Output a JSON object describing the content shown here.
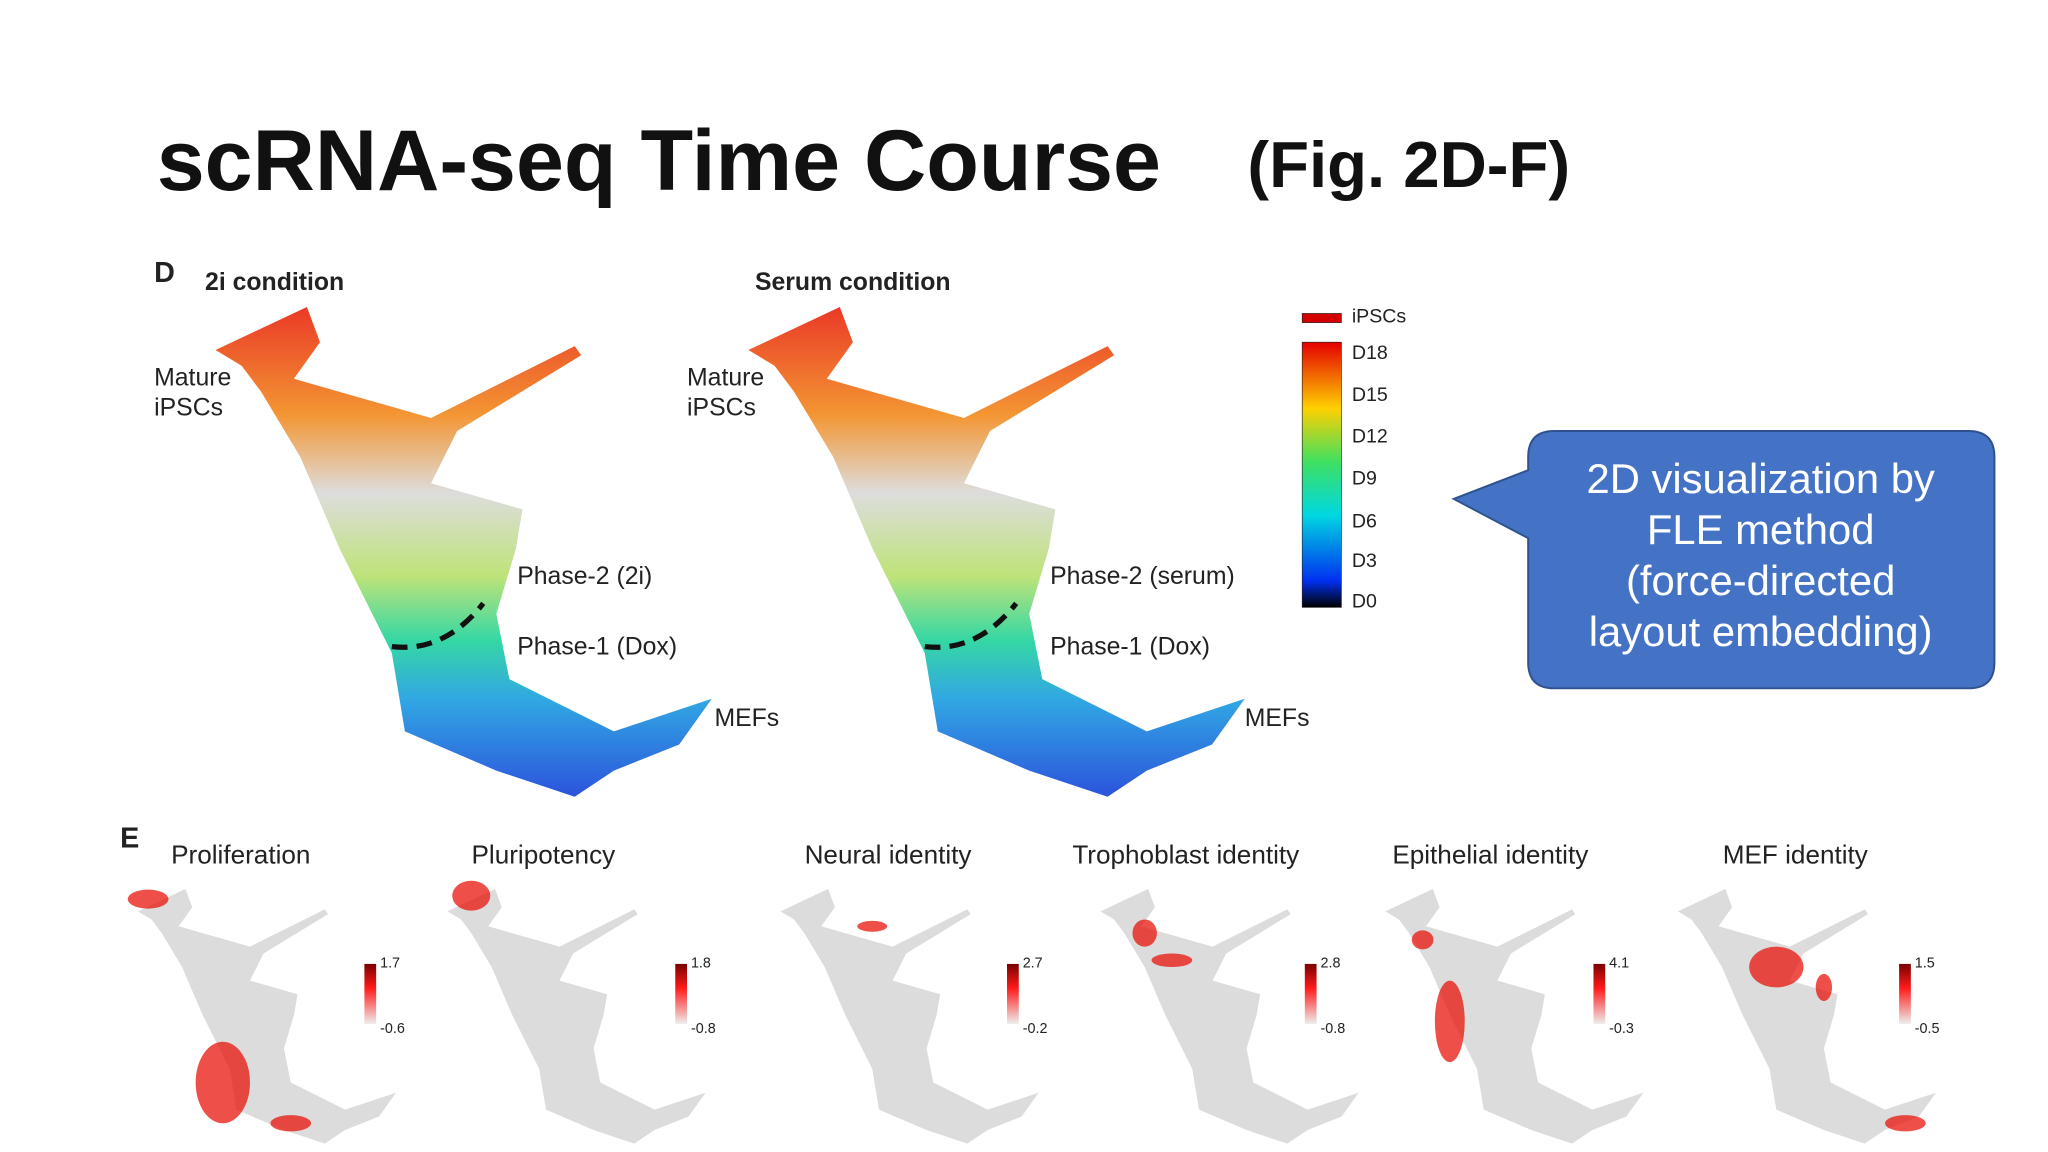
{
  "title": {
    "main": "scRNA-seq Time Course",
    "sub": "(Fig. 2D-F)"
  },
  "panel_d": {
    "label": "D",
    "left": {
      "title": "2i condition",
      "mature": [
        "Mature",
        "iPSCs"
      ],
      "phase2": "Phase-2 (2i)",
      "phase1": "Phase-1 (Dox)",
      "mefs": "MEFs"
    },
    "right": {
      "title": "Serum condition",
      "mature": [
        "Mature",
        "iPSCs"
      ],
      "phase2": "Phase-2 (serum)",
      "phase1": "Phase-1 (Dox)",
      "mefs": "MEFs"
    },
    "legend": {
      "labels": [
        "iPSCs",
        "D18",
        "D15",
        "D12",
        "D9",
        "D6",
        "D3",
        "D0"
      ]
    }
  },
  "callout": {
    "lines": [
      "2D visualization by",
      "FLE method",
      "(force-directed",
      "layout embedding)"
    ]
  },
  "panel_e": {
    "label": "E",
    "plots": [
      {
        "title": "Proliferation",
        "max": "1.7",
        "min": "-0.6"
      },
      {
        "title": "Pluripotency",
        "max": "1.8",
        "min": "-0.8"
      },
      {
        "title": "Neural identity",
        "max": "2.7",
        "min": "-0.2"
      },
      {
        "title": "Trophoblast identity",
        "max": "2.8",
        "min": "-0.8"
      },
      {
        "title": "Epithelial identity",
        "max": "4.1",
        "min": "-0.3"
      },
      {
        "title": "MEF identity",
        "max": "1.5",
        "min": "-0.5"
      }
    ]
  }
}
